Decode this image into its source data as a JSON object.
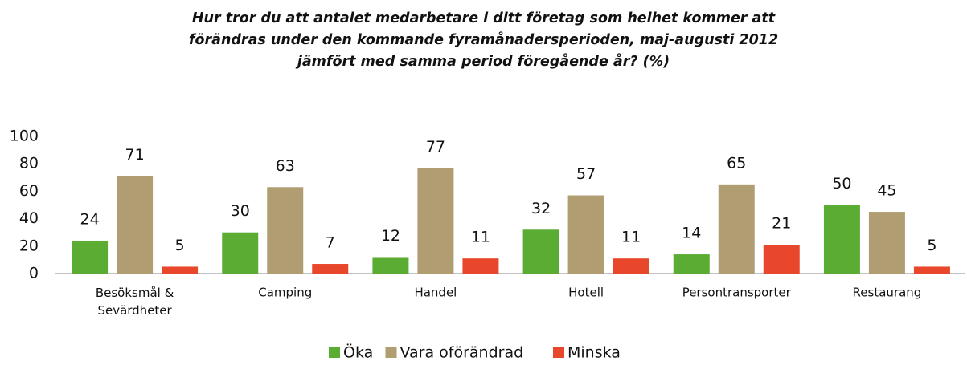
{
  "chart_data": {
    "type": "bar",
    "title": "Hur tror du att antalet medarbetare i ditt företag som helhet kommer att förändras under den kommande fyramånadersperioden, maj-augusti 2012 jämfört med samma period föregående år? (%)",
    "categories": [
      "Besöksmål & Sevärdheter",
      "Camping",
      "Handel",
      "Hotell",
      "Persontransporter",
      "Restaurang"
    ],
    "series": [
      {
        "name": "Öka",
        "color": "#5aac32",
        "values": [
          24,
          30,
          12,
          32,
          14,
          50
        ]
      },
      {
        "name": "Vara oförändrad",
        "color": "#b09d72",
        "values": [
          71,
          63,
          77,
          57,
          65,
          45
        ]
      },
      {
        "name": "Minska",
        "color": "#e8472b",
        "values": [
          5,
          7,
          11,
          11,
          21,
          5
        ]
      }
    ],
    "ylim": [
      0,
      100
    ],
    "yticks": [
      0,
      20,
      40,
      60,
      80,
      100
    ],
    "grid": false,
    "legend": "bottom"
  }
}
